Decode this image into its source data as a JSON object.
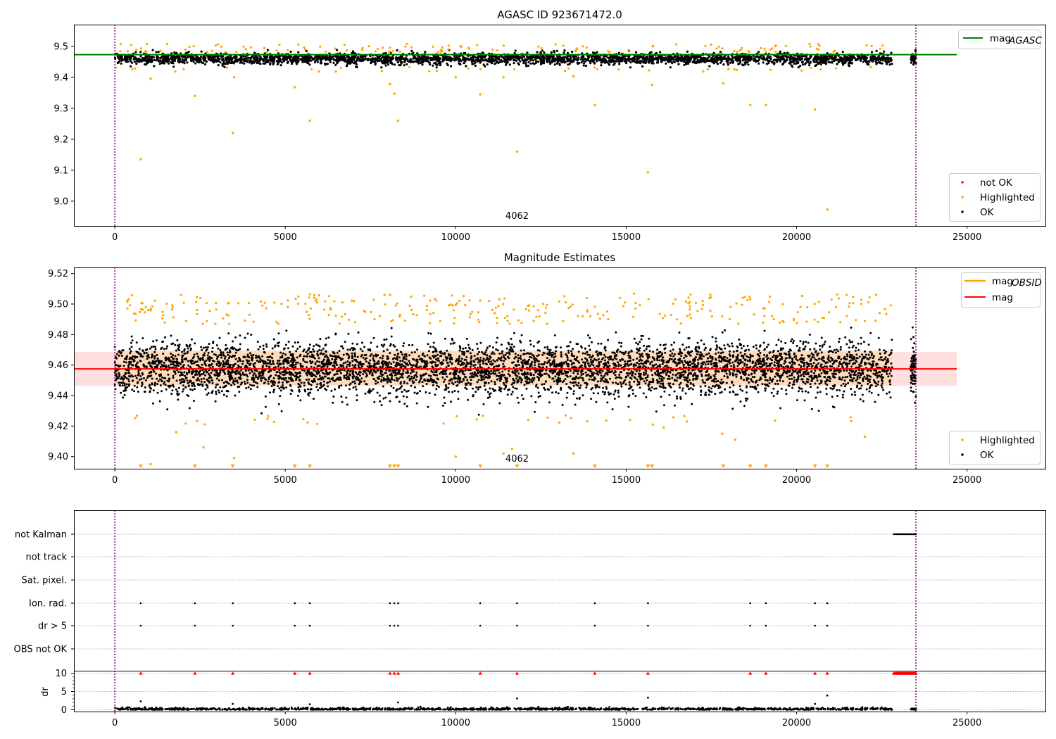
{
  "chart_data": [
    {
      "type": "scatter",
      "title": "AGASC ID 923671472.0",
      "xlim": [
        -1200,
        27300
      ],
      "ylim": [
        8.92,
        9.57
      ],
      "xticks": [
        0,
        5000,
        10000,
        15000,
        20000,
        25000
      ],
      "yticks": [
        9.0,
        9.1,
        9.2,
        9.3,
        9.4,
        9.5
      ],
      "ytick_labels": [
        "9.0",
        "9.1",
        "9.2",
        "9.3",
        "9.4",
        "9.5"
      ],
      "annotation": {
        "text": "4062",
        "x": 11800
      },
      "vlines": [
        0,
        23500
      ],
      "vline_color": "#800080",
      "hline": {
        "name": "mag",
        "subscript": "AGASC",
        "y": 9.473,
        "x_range": [
          -1200,
          24700
        ],
        "color": "#008000"
      },
      "ok_band": {
        "y_low": 9.432,
        "y_high": 9.488
      },
      "colors": {
        "ok": "#000000",
        "highlighted": "#ffa500",
        "not_ok": "#ff0000"
      },
      "legend_main": {
        "placement": "top-right",
        "entries": [
          {
            "label": "mag",
            "subscript": "AGASC"
          }
        ]
      },
      "legend_points": {
        "placement": "bottom-right",
        "entries": [
          "not OK",
          "Highlighted",
          "OK"
        ]
      },
      "outliers": [
        [
          760,
          9.135
        ],
        [
          1050,
          9.395
        ],
        [
          2350,
          9.34
        ],
        [
          3460,
          9.22
        ],
        [
          3500,
          9.4
        ],
        [
          5280,
          9.368
        ],
        [
          5720,
          9.26
        ],
        [
          8070,
          9.378
        ],
        [
          8200,
          9.347
        ],
        [
          8310,
          9.26
        ],
        [
          10000,
          9.4
        ],
        [
          10720,
          9.345
        ],
        [
          11400,
          9.4
        ],
        [
          11800,
          9.16
        ],
        [
          13450,
          9.403
        ],
        [
          14080,
          9.31
        ],
        [
          15640,
          9.093
        ],
        [
          15760,
          9.376
        ],
        [
          17850,
          9.38
        ],
        [
          18640,
          9.31
        ],
        [
          19100,
          9.31
        ],
        [
          20540,
          9.296
        ],
        [
          20900,
          8.973
        ]
      ]
    },
    {
      "type": "scatter",
      "title": "Magnitude Estimates",
      "xlim": [
        -1200,
        27300
      ],
      "ylim": [
        9.392,
        9.524
      ],
      "xticks": [
        0,
        5000,
        10000,
        15000,
        20000,
        25000
      ],
      "yticks": [
        9.4,
        9.42,
        9.44,
        9.46,
        9.48,
        9.5,
        9.52
      ],
      "ytick_labels": [
        "9.40",
        "9.42",
        "9.44",
        "9.46",
        "9.48",
        "9.50",
        "9.52"
      ],
      "annotation": {
        "text": "4062",
        "x": 11800
      },
      "vlines": [
        0,
        23500
      ],
      "mag_line": {
        "name": "mag",
        "y": 9.4575,
        "x_range": [
          -1200,
          24700
        ],
        "color": "#ff0000"
      },
      "mag_band": {
        "y_low": 9.4465,
        "y_high": 9.4685,
        "color": "#ffd6d6"
      },
      "obsid_band": {
        "y_low": 9.447,
        "y_high": 9.4695,
        "x_range": [
          0,
          22800
        ],
        "color": "#ffdab9"
      },
      "legend_main": {
        "placement": "top-right",
        "entries": [
          {
            "label": "mag",
            "subscript": "OBSID",
            "color": "#ffa500"
          },
          {
            "label": "mag",
            "color": "#ff0000"
          }
        ]
      },
      "legend_points": {
        "placement": "bottom-right",
        "entries": [
          "Highlighted",
          "OK"
        ]
      },
      "offscale_markers_x": [
        760,
        2350,
        3460,
        5280,
        5720,
        8070,
        8200,
        8310,
        10720,
        11800,
        14080,
        15640,
        15760,
        17850,
        18640,
        19100,
        20540,
        20900
      ],
      "low_outliers": [
        [
          1050,
          9.395
        ],
        [
          1800,
          9.416
        ],
        [
          2600,
          9.406
        ],
        [
          3500,
          9.399
        ],
        [
          10000,
          9.4
        ],
        [
          11400,
          9.402
        ],
        [
          11650,
          9.405
        ],
        [
          13450,
          9.402
        ],
        [
          15780,
          9.421
        ],
        [
          16100,
          9.419
        ],
        [
          17820,
          9.415
        ],
        [
          18200,
          9.411
        ],
        [
          22000,
          9.413
        ]
      ]
    },
    {
      "type": "scatter",
      "xlim": [
        -1200,
        27300
      ],
      "xticks": [
        0,
        5000,
        10000,
        15000,
        20000,
        25000
      ],
      "flag_rows": [
        "not Kalman",
        "not track",
        "Sat. pixel.",
        "Ion. rad.",
        "dr > 5",
        "OBS not OK"
      ],
      "flag_points": {
        "Ion. rad.": [
          760,
          2350,
          3460,
          5280,
          5720,
          8070,
          8200,
          8310,
          10720,
          11800,
          14080,
          15640,
          18640,
          19100,
          20540,
          20900
        ],
        "dr > 5": [
          760,
          2350,
          3460,
          5280,
          5720,
          8070,
          8200,
          8310,
          10720,
          11800,
          14080,
          15640,
          18640,
          19100,
          20540,
          20900
        ]
      },
      "not_kalman_range": [
        22850,
        23500
      ],
      "ylabel": "dr",
      "dr_ylim": [
        -0.5,
        10.5
      ],
      "dr_yticks": [
        0,
        5,
        10
      ],
      "dr_ytick_labels": [
        "0",
        "5",
        "10"
      ],
      "dr_capped": {
        "y": 10,
        "x": [
          760,
          2350,
          3460,
          5280,
          5720,
          8070,
          8200,
          8310,
          10720,
          11800,
          14080,
          15640,
          18640,
          19100,
          20540,
          20900
        ],
        "color": "#ff0000"
      },
      "dr_capped_range": [
        22850,
        23500
      ],
      "dr_outliers": [
        [
          760,
          2.3
        ],
        [
          3460,
          1.6
        ],
        [
          5720,
          1.5
        ],
        [
          8310,
          2.0
        ],
        [
          11800,
          3.1
        ],
        [
          15640,
          3.3
        ],
        [
          20540,
          1.6
        ],
        [
          20900,
          3.9
        ]
      ]
    }
  ]
}
